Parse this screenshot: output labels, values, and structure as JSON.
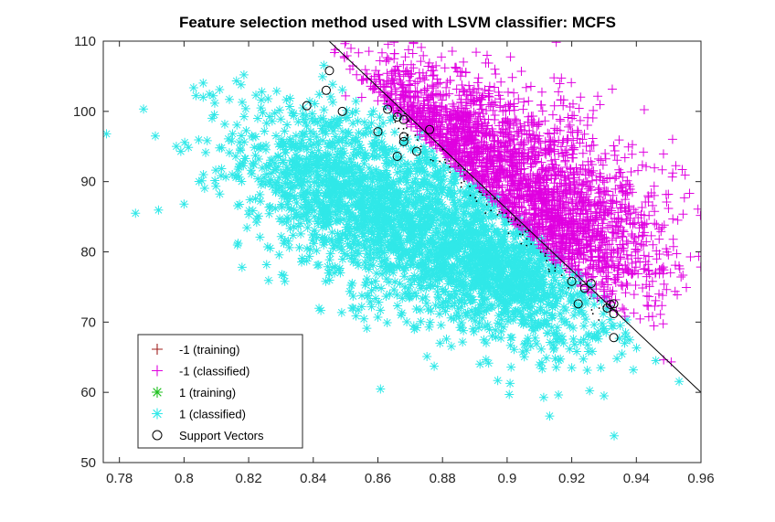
{
  "chart_data": {
    "type": "scatter",
    "title": "Feature selection method used with LSVM classifier: MCFS",
    "xlabel": "",
    "ylabel": "",
    "xlim": [
      0.775,
      0.96
    ],
    "ylim": [
      50,
      110
    ],
    "x_ticks": [
      "0.78",
      "0.8",
      "0.82",
      "0.84",
      "0.86",
      "0.88",
      "0.9",
      "0.92",
      "0.94",
      "0.96"
    ],
    "y_ticks": [
      "50",
      "60",
      "70",
      "80",
      "90",
      "100",
      "110"
    ],
    "grid": false,
    "legend_position": "bottom-left",
    "decision_boundary": {
      "x": [
        0.838,
        0.96
      ],
      "y": [
        113,
        60
      ]
    },
    "series": [
      {
        "name": "-1 (training)",
        "marker": "plus",
        "color": "#a0201e",
        "points": []
      },
      {
        "name": "-1 (classified)",
        "marker": "plus",
        "color": "#e000e0",
        "points": [
          [
            0.865,
            107.5
          ],
          [
            0.871,
            106.2
          ],
          [
            0.878,
            106.5
          ],
          [
            0.865,
            105.8
          ],
          [
            0.873,
            104.7
          ],
          [
            0.85,
            102.2
          ],
          [
            0.855,
            102
          ],
          [
            0.86,
            101.5
          ],
          [
            0.868,
            103.5
          ],
          [
            0.882,
            102.5
          ],
          [
            0.9,
            98.5
          ],
          [
            0.91,
            96.5
          ],
          [
            0.93,
            87
          ],
          [
            0.937,
            77.5
          ],
          [
            0.947,
            74
          ],
          [
            0.945,
            70.8
          ],
          [
            0.932,
            72.8
          ],
          [
            0.93,
            75
          ],
          [
            0.918,
            93
          ]
        ],
        "clusters": [
          {
            "center": [
              0.895,
              92
            ],
            "spread": [
              0.028,
              6.5
            ],
            "count": 1600
          },
          {
            "center": [
              0.918,
              82.5
            ],
            "spread": [
              0.012,
              4.2
            ],
            "count": 500
          },
          {
            "center": [
              0.877,
              98
            ],
            "spread": [
              0.014,
              2.8
            ],
            "count": 350
          }
        ]
      },
      {
        "name": "1 (training)",
        "marker": "asterisk",
        "color": "#20c020",
        "points": []
      },
      {
        "name": "1 (classified)",
        "marker": "asterisk",
        "color": "#30e8e8",
        "points": [
          [
            0.776,
            96.8
          ],
          [
            0.799,
            94.3
          ],
          [
            0.8,
            86.8
          ],
          [
            0.806,
            91
          ],
          [
            0.811,
            94.8
          ],
          [
            0.816,
            93.6
          ],
          [
            0.818,
            101.3
          ],
          [
            0.826,
            101.8
          ],
          [
            0.834,
            83.6
          ],
          [
            0.929,
            63.5
          ],
          [
            0.93,
            59.5
          ],
          [
            0.92,
            63.5
          ],
          [
            0.906,
            66
          ],
          [
            0.934,
            64.8
          ],
          [
            0.935,
            69.5
          ],
          [
            0.928,
            68
          ],
          [
            0.857,
            73.8
          ],
          [
            0.87,
            73.6
          ],
          [
            0.89,
            71
          ],
          [
            0.9,
            72.5
          ]
        ],
        "clusters": [
          {
            "center": [
              0.875,
              83
            ],
            "spread": [
              0.028,
              6.5
            ],
            "count": 2000
          },
          {
            "center": [
              0.9,
              76.5
            ],
            "spread": [
              0.014,
              3.5
            ],
            "count": 450
          },
          {
            "center": [
              0.848,
              89
            ],
            "spread": [
              0.014,
              4.5
            ],
            "count": 400
          }
        ]
      },
      {
        "name": "Support Vectors",
        "marker": "circle",
        "color": "#000000",
        "points": [
          [
            0.845,
            105.8
          ],
          [
            0.844,
            103
          ],
          [
            0.838,
            100.8
          ],
          [
            0.849,
            100
          ],
          [
            0.86,
            97.1
          ],
          [
            0.863,
            100.3
          ],
          [
            0.868,
            98.8
          ],
          [
            0.866,
            99.2
          ],
          [
            0.868,
            95.7
          ],
          [
            0.872,
            94.3
          ],
          [
            0.876,
            97.4
          ],
          [
            0.866,
            93.6
          ],
          [
            0.868,
            96.4
          ],
          [
            0.924,
            74.8
          ],
          [
            0.92,
            75.8
          ],
          [
            0.922,
            72.6
          ],
          [
            0.931,
            72
          ],
          [
            0.932,
            72.5
          ],
          [
            0.933,
            72.6
          ],
          [
            0.933,
            71.2
          ],
          [
            0.933,
            67.8
          ],
          [
            0.926,
            75.5
          ]
        ]
      }
    ]
  }
}
